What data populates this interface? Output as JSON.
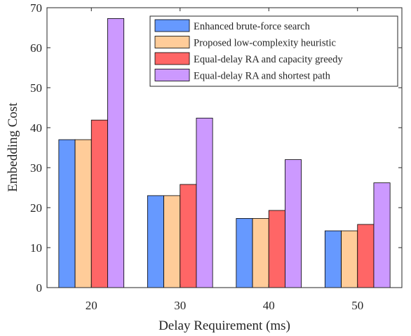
{
  "chart_data": {
    "type": "bar",
    "xlabel": "Delay Requirement (ms)",
    "ylabel": "Embedding Cost",
    "categories": [
      "20",
      "30",
      "40",
      "50"
    ],
    "ylim": [
      0,
      70
    ],
    "yticks": [
      0,
      10,
      20,
      30,
      40,
      50,
      60,
      70
    ],
    "legend_position": "top-right",
    "grid": false,
    "series": [
      {
        "name": "Enhanced brute-force search",
        "color": "#6699ff",
        "values": [
          37,
          23,
          17.3,
          14.2
        ]
      },
      {
        "name": "Proposed low-complexity heuristic",
        "color": "#ffcc99",
        "values": [
          37,
          23,
          17.3,
          14.2
        ]
      },
      {
        "name": "Equal-delay RA and capacity greedy",
        "color": "#ff6666",
        "values": [
          41.9,
          25.8,
          19.3,
          15.8
        ]
      },
      {
        "name": "Equal-delay RA and shortest path",
        "color": "#cc99ff",
        "values": [
          67.3,
          42.4,
          32,
          26.2
        ]
      }
    ]
  }
}
